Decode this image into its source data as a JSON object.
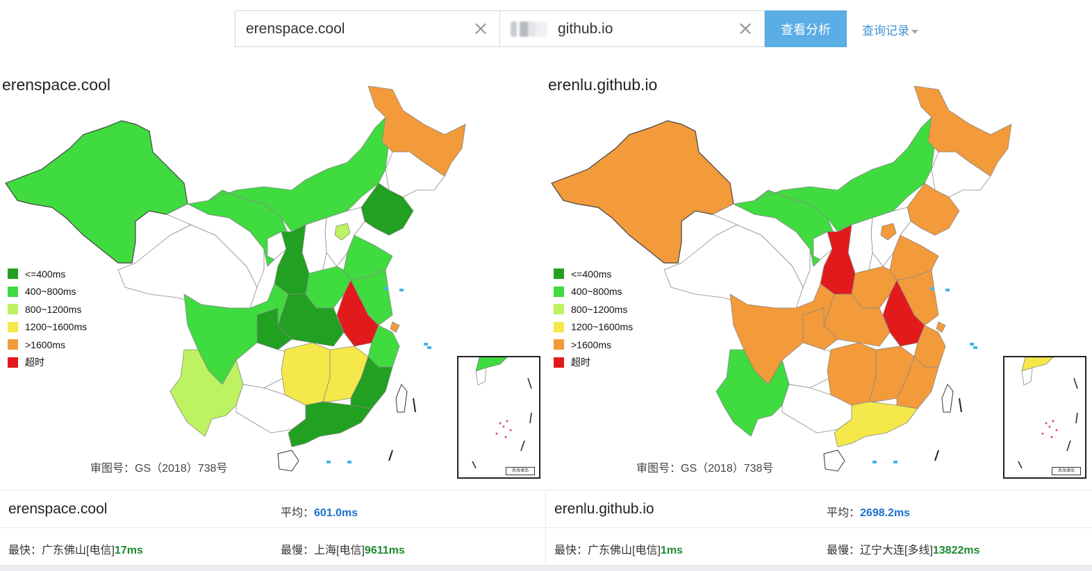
{
  "search": {
    "domain1": "erenspace.cool",
    "domain2_visible": "github.io",
    "clear_icon": "×",
    "analyze_label": "查看分析",
    "history_label": "查询记录"
  },
  "legend": {
    "items": [
      {
        "label": "<=400ms",
        "color": "#21a021"
      },
      {
        "label": "400~800ms",
        "color": "#3fdb3f"
      },
      {
        "label": "800~1200ms",
        "color": "#bdf260"
      },
      {
        "label": "1200~1600ms",
        "color": "#f4e84a"
      },
      {
        "label": ">1600ms",
        "color": "#f39a3a"
      },
      {
        "label": "超时",
        "color": "#e31a1c"
      }
    ]
  },
  "panels": [
    {
      "title": "erenspace.cool",
      "gs_number": "审图号：GS（2018）738号",
      "stats": {
        "domain": "erenspace.cool",
        "avg_label": "平均：",
        "avg_value": "601.0ms",
        "fastest_label": "最快：",
        "fastest_location": "广东佛山[电信]",
        "fastest_value": "17ms",
        "slowest_label": "最慢：",
        "slowest_location": "上海[电信]",
        "slowest_value": "9611ms"
      }
    },
    {
      "title": "erenlu.github.io",
      "gs_number": "审图号：GS（2018）738号",
      "stats": {
        "domain": "erenlu.github.io",
        "avg_label": "平均：",
        "avg_value": "2698.2ms",
        "fastest_label": "最快：",
        "fastest_location": "广东佛山[电信]",
        "fastest_value": "1ms",
        "slowest_label": "最慢：",
        "slowest_location": "辽宁大连[多线]",
        "slowest_value": "13822ms"
      }
    }
  ],
  "inset": {
    "label": "南海诸岛"
  }
}
